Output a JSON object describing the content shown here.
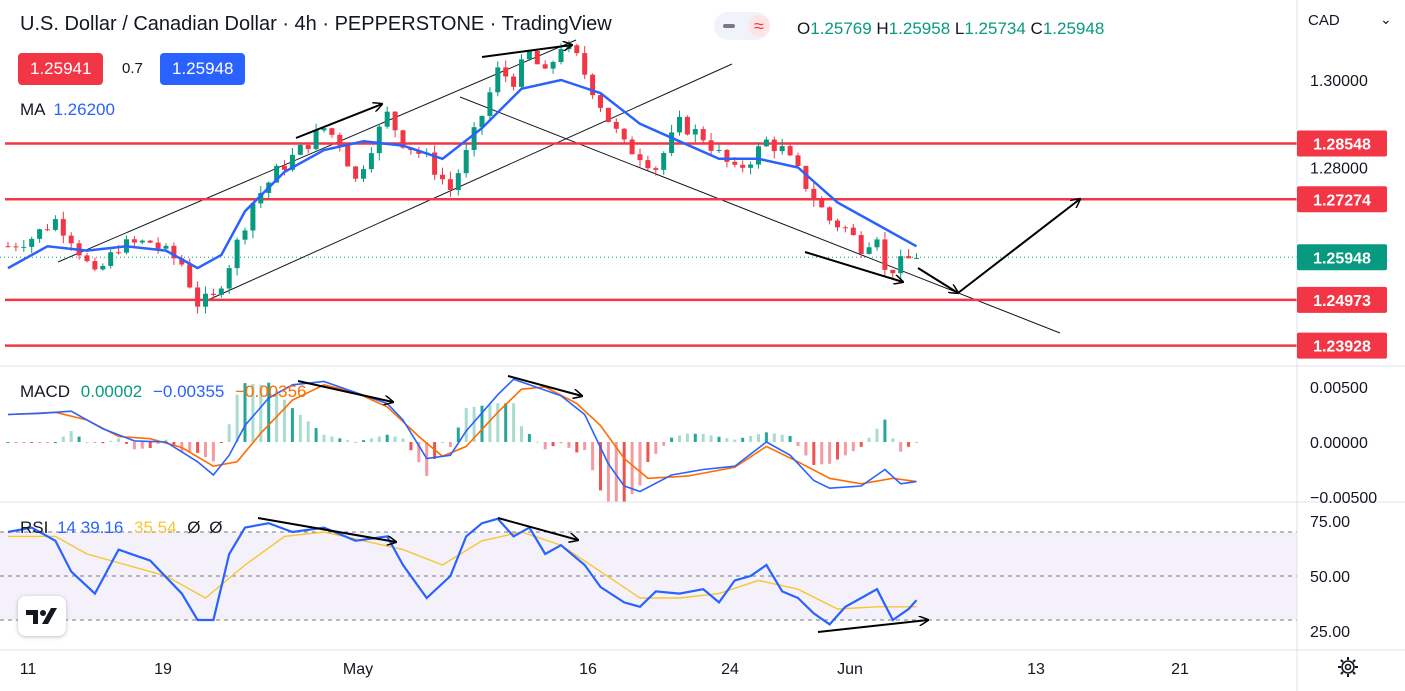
{
  "header": {
    "title": "U.S. Dollar / Canadian Dollar · 4h · PEPPERSTONE · TradingView",
    "bid": "1.25941",
    "spread": "0.7",
    "ask": "1.25948",
    "open_label": "O",
    "open": "1.25769",
    "high_label": "H",
    "high": "1.25958",
    "low_label": "L",
    "low": "1.25734",
    "close_label": "C",
    "close": "1.25948",
    "currency": "CAD",
    "ma_label": "MA",
    "ma_value": "1.26200"
  },
  "colors": {
    "up": "#089981",
    "down": "#f23645",
    "ma": "#2962ff",
    "level": "#f23645",
    "bid": "#f23645",
    "ask": "#2962ff",
    "price_tag": "#089981"
  },
  "chart_data": [
    {
      "type": "candlestick",
      "title": "U.S. Dollar / Canadian Dollar · 4h · PEPPERSTONE",
      "ylim": [
        1.232,
        1.319
      ],
      "x_ticks": [
        "11",
        "19",
        "May",
        "16",
        "24",
        "Jun",
        "13",
        "21"
      ],
      "y_ticks": [
        "1.30000",
        "1.28000"
      ],
      "horizontal_levels": [
        "1.28548",
        "1.27274",
        "1.24973",
        "1.23928"
      ],
      "last_price": "1.25948",
      "ma_period_value": 1.262,
      "path": [
        [
          0,
          1.262
        ],
        [
          3,
          1.264
        ],
        [
          6,
          1.268
        ],
        [
          8,
          1.264
        ],
        [
          11,
          1.255
        ],
        [
          14,
          1.262
        ],
        [
          18,
          1.263
        ],
        [
          22,
          1.258
        ],
        [
          24,
          1.249
        ],
        [
          26,
          1.25
        ],
        [
          28,
          1.258
        ],
        [
          31,
          1.272
        ],
        [
          34,
          1.279
        ],
        [
          37,
          1.284
        ],
        [
          40,
          1.289
        ],
        [
          42,
          1.286
        ],
        [
          44,
          1.277
        ],
        [
          46,
          1.285
        ],
        [
          48,
          1.292
        ],
        [
          50,
          1.286
        ],
        [
          53,
          1.282
        ],
        [
          56,
          1.275
        ],
        [
          58,
          1.283
        ],
        [
          60,
          1.292
        ],
        [
          62,
          1.302
        ],
        [
          64,
          1.3
        ],
        [
          66,
          1.306
        ],
        [
          68,
          1.301
        ],
        [
          70,
          1.308
        ],
        [
          72,
          1.305
        ],
        [
          74,
          1.298
        ],
        [
          76,
          1.291
        ],
        [
          78,
          1.285
        ],
        [
          80,
          1.283
        ],
        [
          82,
          1.28
        ],
        [
          85,
          1.29
        ],
        [
          88,
          1.287
        ],
        [
          90,
          1.283
        ],
        [
          92,
          1.279
        ],
        [
          94,
          1.282
        ],
        [
          96,
          1.286
        ],
        [
          98,
          1.284
        ],
        [
          100,
          1.279
        ],
        [
          102,
          1.273
        ],
        [
          104,
          1.268
        ],
        [
          106,
          1.266
        ],
        [
          108,
          1.262
        ],
        [
          110,
          1.265
        ],
        [
          111,
          1.256
        ],
        [
          113,
          1.258
        ],
        [
          115,
          1.26
        ]
      ],
      "ma": [
        [
          0,
          1.257
        ],
        [
          5,
          1.262
        ],
        [
          10,
          1.261
        ],
        [
          15,
          1.262
        ],
        [
          20,
          1.261
        ],
        [
          24,
          1.257
        ],
        [
          27,
          1.26
        ],
        [
          30,
          1.27
        ],
        [
          35,
          1.279
        ],
        [
          40,
          1.284
        ],
        [
          45,
          1.286
        ],
        [
          50,
          1.285
        ],
        [
          55,
          1.282
        ],
        [
          60,
          1.289
        ],
        [
          65,
          1.298
        ],
        [
          70,
          1.3
        ],
        [
          75,
          1.297
        ],
        [
          80,
          1.29
        ],
        [
          85,
          1.286
        ],
        [
          90,
          1.282
        ],
        [
          95,
          1.282
        ],
        [
          100,
          1.28
        ],
        [
          105,
          1.272
        ],
        [
          110,
          1.267
        ],
        [
          115,
          1.262
        ]
      ]
    },
    {
      "type": "line",
      "title": "MACD",
      "legend": [
        "MACD",
        "0.00002",
        "−0.00355",
        "−0.00356"
      ],
      "ylim": [
        -0.0055,
        0.0063
      ],
      "y_ticks": [
        "0.00500",
        "0.00000",
        "−0.00500"
      ],
      "series": [
        {
          "name": "MACD",
          "color": "#2962ff",
          "values": [
            [
              0,
              0.0025
            ],
            [
              4,
              0.0026
            ],
            [
              8,
              0.0028
            ],
            [
              12,
              0.0012
            ],
            [
              16,
              0.0001
            ],
            [
              20,
              0.0
            ],
            [
              24,
              -0.0018
            ],
            [
              26,
              -0.003
            ],
            [
              28,
              -0.0012
            ],
            [
              30,
              0.0015
            ],
            [
              33,
              0.004
            ],
            [
              36,
              0.0052
            ],
            [
              40,
              0.0055
            ],
            [
              44,
              0.0045
            ],
            [
              48,
              0.0035
            ],
            [
              50,
              0.002
            ],
            [
              53,
              -0.0015
            ],
            [
              56,
              -0.0012
            ],
            [
              58,
              0.001
            ],
            [
              62,
              0.0043
            ],
            [
              64,
              0.0057
            ],
            [
              66,
              0.0052
            ],
            [
              70,
              0.0042
            ],
            [
              73,
              0.0025
            ],
            [
              76,
              -0.002
            ],
            [
              78,
              -0.004
            ],
            [
              80,
              -0.0045
            ],
            [
              84,
              -0.003
            ],
            [
              88,
              -0.0025
            ],
            [
              92,
              -0.0022
            ],
            [
              96,
              0.0
            ],
            [
              99,
              -0.0012
            ],
            [
              102,
              -0.0035
            ],
            [
              104,
              -0.0042
            ],
            [
              108,
              -0.004
            ],
            [
              111,
              -0.0025
            ],
            [
              113,
              -0.0038
            ],
            [
              115,
              -0.0036
            ]
          ]
        },
        {
          "name": "Signal",
          "color": "#ff6d00",
          "values": [
            [
              0,
              0.0025
            ],
            [
              6,
              0.0027
            ],
            [
              10,
              0.002
            ],
            [
              14,
              0.0005
            ],
            [
              18,
              0.0003
            ],
            [
              22,
              -0.0005
            ],
            [
              26,
              -0.0022
            ],
            [
              29,
              -0.0018
            ],
            [
              32,
              0.0008
            ],
            [
              36,
              0.0038
            ],
            [
              40,
              0.0052
            ],
            [
              44,
              0.0045
            ],
            [
              48,
              0.0032
            ],
            [
              52,
              0.0005
            ],
            [
              55,
              -0.0013
            ],
            [
              58,
              -0.0004
            ],
            [
              62,
              0.0027
            ],
            [
              65,
              0.0048
            ],
            [
              68,
              0.005
            ],
            [
              72,
              0.0035
            ],
            [
              75,
              0.0015
            ],
            [
              78,
              -0.0015
            ],
            [
              81,
              -0.0033
            ],
            [
              86,
              -0.0031
            ],
            [
              92,
              -0.0023
            ],
            [
              96,
              -0.0004
            ],
            [
              100,
              -0.0018
            ],
            [
              104,
              -0.0033
            ],
            [
              108,
              -0.0038
            ],
            [
              112,
              -0.0033
            ],
            [
              115,
              -0.0036
            ]
          ]
        }
      ]
    },
    {
      "type": "line",
      "title": "RSI",
      "legend": [
        "RSI",
        "14",
        "39.16",
        "35.54",
        "Ø",
        "Ø"
      ],
      "ylim": [
        18,
        80
      ],
      "y_ticks": [
        "75.00",
        "50.00",
        "25.00"
      ],
      "levels": [
        70,
        50,
        30
      ],
      "series": [
        {
          "name": "RSI",
          "color": "#2962ff",
          "values": [
            [
              0,
              70
            ],
            [
              3,
              72
            ],
            [
              6,
              66
            ],
            [
              8,
              52
            ],
            [
              11,
              42
            ],
            [
              14,
              62
            ],
            [
              18,
              57
            ],
            [
              22,
              42
            ],
            [
              24,
              30
            ],
            [
              26,
              30
            ],
            [
              28,
              60
            ],
            [
              30,
              72
            ],
            [
              33,
              74
            ],
            [
              36,
              70
            ],
            [
              40,
              72
            ],
            [
              44,
              66
            ],
            [
              48,
              68
            ],
            [
              50,
              55
            ],
            [
              53,
              40
            ],
            [
              56,
              50
            ],
            [
              58,
              68
            ],
            [
              60,
              74
            ],
            [
              62,
              76
            ],
            [
              64,
              68
            ],
            [
              66,
              72
            ],
            [
              68,
              60
            ],
            [
              70,
              64
            ],
            [
              73,
              55
            ],
            [
              75,
              45
            ],
            [
              78,
              38
            ],
            [
              80,
              36
            ],
            [
              82,
              43
            ],
            [
              85,
              42
            ],
            [
              88,
              44
            ],
            [
              90,
              38
            ],
            [
              92,
              48
            ],
            [
              94,
              50
            ],
            [
              96,
              55
            ],
            [
              98,
              43
            ],
            [
              100,
              40
            ],
            [
              102,
              33
            ],
            [
              104,
              28
            ],
            [
              106,
              36
            ],
            [
              108,
              40
            ],
            [
              110,
              44
            ],
            [
              112,
              30
            ],
            [
              114,
              35
            ],
            [
              115,
              39
            ]
          ]
        },
        {
          "name": "MA",
          "color": "#f7c631",
          "values": [
            [
              0,
              68
            ],
            [
              6,
              68
            ],
            [
              10,
              60
            ],
            [
              15,
              55
            ],
            [
              20,
              50
            ],
            [
              25,
              40
            ],
            [
              30,
              55
            ],
            [
              35,
              68
            ],
            [
              40,
              70
            ],
            [
              45,
              66
            ],
            [
              50,
              62
            ],
            [
              55,
              55
            ],
            [
              60,
              66
            ],
            [
              65,
              70
            ],
            [
              70,
              64
            ],
            [
              75,
              52
            ],
            [
              80,
              40
            ],
            [
              85,
              40
            ],
            [
              90,
              42
            ],
            [
              95,
              48
            ],
            [
              100,
              44
            ],
            [
              105,
              35
            ],
            [
              110,
              36
            ],
            [
              115,
              36
            ]
          ]
        }
      ]
    }
  ]
}
